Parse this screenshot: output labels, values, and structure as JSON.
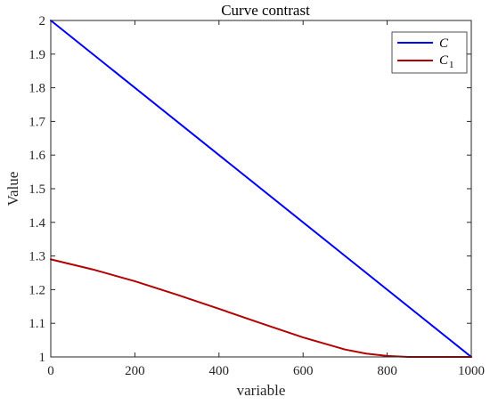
{
  "chart_data": {
    "type": "line",
    "title": "Curve contrast",
    "xlabel": "variable",
    "ylabel": "Value",
    "xlim": [
      0,
      1000
    ],
    "ylim": [
      1,
      2
    ],
    "xticks": [
      0,
      200,
      400,
      600,
      800,
      1000
    ],
    "xtick_labels": [
      "0",
      "200",
      "400",
      "600",
      "800",
      "1000"
    ],
    "yticks": [
      1,
      1.1,
      1.2,
      1.3,
      1.4,
      1.5,
      1.6,
      1.7,
      1.8,
      1.9,
      2
    ],
    "ytick_labels": [
      "1",
      "1.1",
      "1.2",
      "1.3",
      "1.4",
      "1.5",
      "1.6",
      "1.7",
      "1.8",
      "1.9",
      "2"
    ],
    "grid": false,
    "legend_position": "top-right",
    "series": [
      {
        "name": "C",
        "color": "#0000ff",
        "x": [
          0,
          1000
        ],
        "y": [
          2,
          1
        ]
      },
      {
        "name": "C1",
        "name_base": "C",
        "name_subscript": "1",
        "color": "#b40000",
        "x": [
          0,
          100,
          200,
          300,
          400,
          500,
          600,
          700,
          750,
          800,
          850,
          900,
          1000
        ],
        "y": [
          1.29,
          1.26,
          1.225,
          1.185,
          1.143,
          1.1,
          1.058,
          1.022,
          1.01,
          1.003,
          1.0,
          1.0,
          1.0
        ]
      }
    ]
  }
}
